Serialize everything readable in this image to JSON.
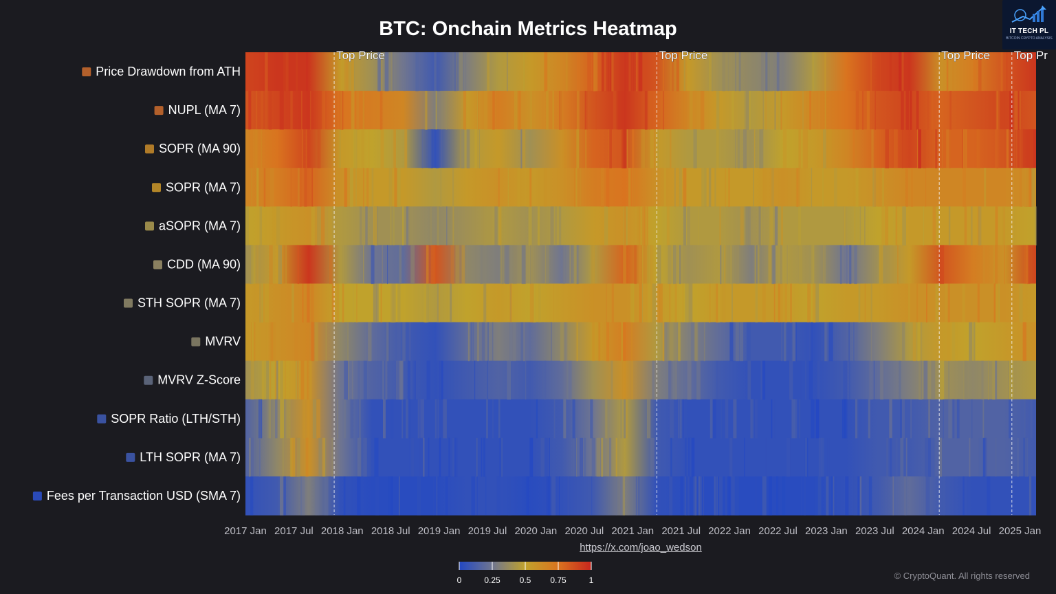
{
  "chart_data": {
    "type": "heatmap",
    "title": "BTC: Onchain Metrics Heatmap",
    "rows": [
      "Price Drawdown from ATH",
      "NUPL (MA 7)",
      "SOPR (MA 90)",
      "SOPR (MA 7)",
      "aSOPR (MA 7)",
      "CDD (MA 90)",
      "STH SOPR (MA 7)",
      "MVRV",
      "MVRV Z-Score",
      "SOPR Ratio (LTH/STH)",
      "LTH SOPR (MA 7)",
      "Fees per Transaction USD (SMA 7)"
    ],
    "row_colors": [
      "#b3602b",
      "#b3602b",
      "#b07b28",
      "#b38628",
      "#9a8a4a",
      "#8a8060",
      "#807a60",
      "#7a7560",
      "#5a6378",
      "#3a52a0",
      "#3a52a0",
      "#2a4ab8"
    ],
    "x_ticks": [
      "2017 Jan",
      "2017 Jul",
      "2018 Jan",
      "2018 Jul",
      "2019 Jan",
      "2019 Jul",
      "2020 Jan",
      "2020 Jul",
      "2021 Jan",
      "2021 Jul",
      "2022 Jan",
      "2022 Jul",
      "2023 Jan",
      "2023 Jul",
      "2024 Jan",
      "2024 Jul",
      "2025 Jan"
    ],
    "x_start": "2017 Jan",
    "x_end": "2025 Mar",
    "value_range": [
      0,
      1
    ],
    "colorscale": {
      "stops": [
        0,
        0.25,
        0.5,
        0.75,
        1
      ],
      "colors": [
        "#2348c3",
        "#6f7590",
        "#c0a22c",
        "#d9741f",
        "#c8261e"
      ],
      "tick_labels": [
        "0",
        "0.25",
        "0.5",
        "0.75",
        "1"
      ]
    },
    "annotations": [
      {
        "date": "2017 Dec",
        "label": "Top Price"
      },
      {
        "date": "2021 Apr",
        "label": "Top Price"
      },
      {
        "date": "2024 Mar",
        "label": "Top Price"
      },
      {
        "date": "2024 Dec",
        "label": "Top Pr"
      }
    ],
    "values": [
      [
        0.9,
        0.95,
        0.95,
        0.55,
        0.4,
        0.25,
        0.1,
        0.3,
        0.45,
        0.55,
        0.65,
        0.8,
        0.95,
        0.85,
        0.55,
        0.4,
        0.35,
        0.3,
        0.45,
        0.75,
        0.9,
        0.95,
        0.6,
        0.7,
        0.85,
        0.95
      ],
      [
        0.85,
        0.9,
        0.95,
        0.75,
        0.7,
        0.65,
        0.3,
        0.55,
        0.7,
        0.6,
        0.7,
        0.85,
        0.95,
        0.8,
        0.65,
        0.55,
        0.45,
        0.55,
        0.65,
        0.75,
        0.85,
        0.9,
        0.8,
        0.85,
        0.9,
        0.85
      ],
      [
        0.65,
        0.75,
        0.9,
        0.55,
        0.5,
        0.45,
        0.05,
        0.45,
        0.55,
        0.4,
        0.6,
        0.8,
        0.85,
        0.55,
        0.45,
        0.45,
        0.4,
        0.5,
        0.55,
        0.65,
        0.8,
        0.9,
        0.8,
        0.8,
        0.85,
        0.95
      ],
      [
        0.65,
        0.7,
        0.8,
        0.6,
        0.55,
        0.55,
        0.45,
        0.55,
        0.6,
        0.55,
        0.6,
        0.7,
        0.75,
        0.6,
        0.55,
        0.55,
        0.55,
        0.6,
        0.55,
        0.55,
        0.6,
        0.65,
        0.65,
        0.65,
        0.65,
        0.6
      ],
      [
        0.5,
        0.55,
        0.6,
        0.45,
        0.4,
        0.4,
        0.35,
        0.4,
        0.45,
        0.4,
        0.45,
        0.55,
        0.6,
        0.5,
        0.45,
        0.45,
        0.4,
        0.45,
        0.45,
        0.45,
        0.5,
        0.55,
        0.55,
        0.55,
        0.55,
        0.5
      ],
      [
        0.4,
        0.55,
        0.95,
        0.45,
        0.25,
        0.2,
        0.85,
        0.35,
        0.3,
        0.4,
        0.25,
        0.45,
        0.8,
        0.5,
        0.4,
        0.45,
        0.3,
        0.45,
        0.4,
        0.25,
        0.4,
        0.55,
        0.85,
        0.7,
        0.6,
        0.9
      ],
      [
        0.55,
        0.6,
        0.65,
        0.5,
        0.5,
        0.5,
        0.45,
        0.5,
        0.55,
        0.5,
        0.55,
        0.6,
        0.6,
        0.55,
        0.5,
        0.55,
        0.55,
        0.55,
        0.5,
        0.55,
        0.55,
        0.6,
        0.6,
        0.6,
        0.6,
        0.55
      ],
      [
        0.55,
        0.6,
        0.65,
        0.35,
        0.2,
        0.1,
        0.05,
        0.2,
        0.3,
        0.2,
        0.35,
        0.55,
        0.7,
        0.45,
        0.3,
        0.2,
        0.1,
        0.1,
        0.05,
        0.15,
        0.3,
        0.45,
        0.55,
        0.5,
        0.55,
        0.6
      ],
      [
        0.4,
        0.5,
        0.6,
        0.25,
        0.15,
        0.1,
        0.05,
        0.1,
        0.15,
        0.1,
        0.2,
        0.4,
        0.6,
        0.3,
        0.2,
        0.1,
        0.05,
        0.05,
        0.05,
        0.1,
        0.2,
        0.3,
        0.4,
        0.35,
        0.4,
        0.45
      ],
      [
        0.15,
        0.35,
        0.6,
        0.25,
        0.05,
        0.05,
        0.05,
        0.05,
        0.05,
        0.05,
        0.1,
        0.25,
        0.45,
        0.1,
        0.05,
        0.05,
        0.05,
        0.05,
        0.05,
        0.05,
        0.1,
        0.1,
        0.15,
        0.15,
        0.15,
        0.1
      ],
      [
        0.15,
        0.35,
        0.6,
        0.25,
        0.05,
        0.05,
        0.05,
        0.05,
        0.05,
        0.05,
        0.1,
        0.25,
        0.45,
        0.1,
        0.05,
        0.05,
        0.05,
        0.05,
        0.05,
        0.05,
        0.1,
        0.1,
        0.15,
        0.15,
        0.15,
        0.1
      ],
      [
        0.05,
        0.1,
        0.3,
        0.05,
        0.02,
        0.02,
        0.02,
        0.05,
        0.05,
        0.02,
        0.05,
        0.1,
        0.3,
        0.05,
        0.02,
        0.02,
        0.02,
        0.02,
        0.02,
        0.05,
        0.1,
        0.2,
        0.1,
        0.05,
        0.05,
        0.05
      ]
    ]
  },
  "branding": {
    "logo_text": "IT TECH PL",
    "logo_sub": "BITCOIN CRYPTO ANALYSIS",
    "source_link": "https://x.com/joao_wedson",
    "copyright": "© CryptoQuant. All rights reserved"
  }
}
